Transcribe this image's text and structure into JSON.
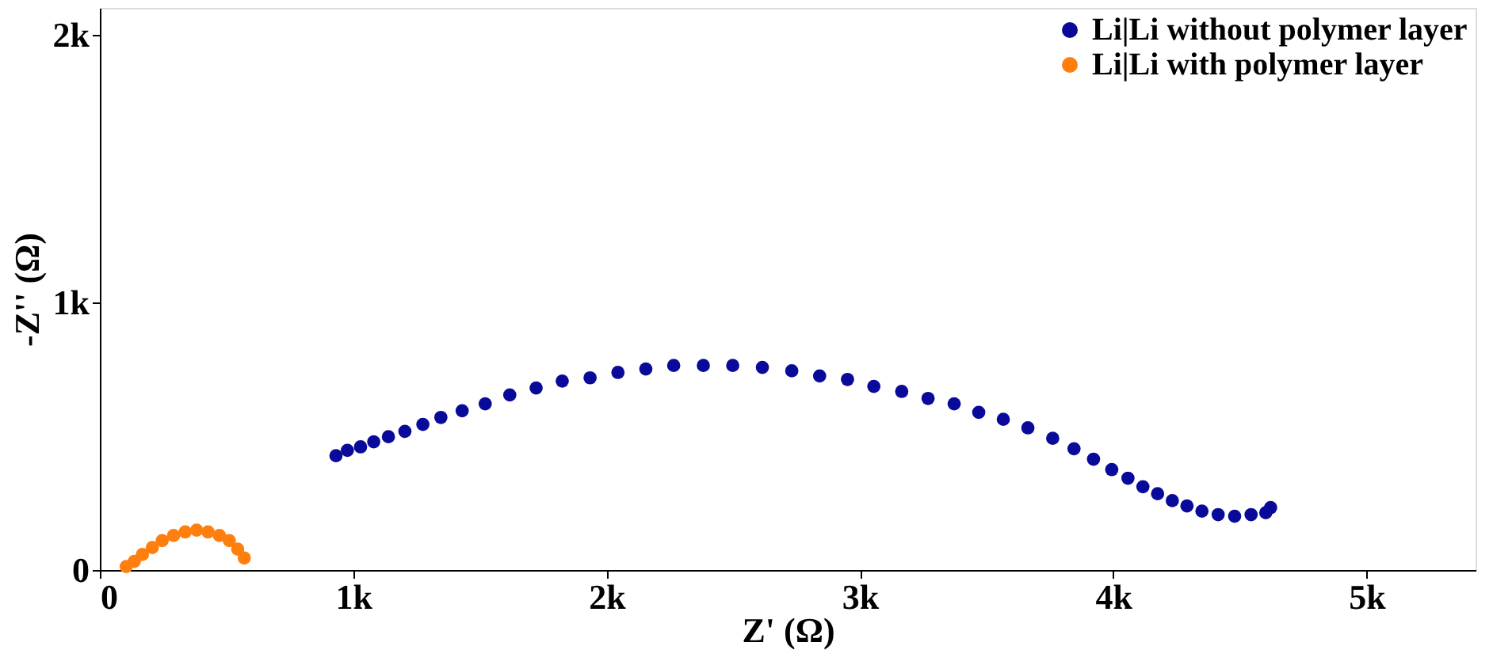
{
  "chart_data": {
    "type": "scatter",
    "xlabel": "Z' (Ω)",
    "ylabel": "-Z'' (Ω)",
    "xlim": [
      0,
      5430
    ],
    "ylim": [
      0,
      2100
    ],
    "xticks": [
      0,
      {
        "value": 1000,
        "label": "1k"
      },
      {
        "value": 2000,
        "label": "2k"
      },
      {
        "value": 3000,
        "label": "3k"
      },
      {
        "value": 4000,
        "label": "4k"
      },
      {
        "value": 5000,
        "label": "5k"
      }
    ],
    "yticks": [
      0,
      {
        "value": 1000,
        "label": "1k"
      },
      {
        "value": 2000,
        "label": "2k"
      }
    ],
    "grid": false,
    "legend": "top right",
    "marker": "circle",
    "series": [
      {
        "name": "Li|Li without polymer layer",
        "color": "#0a0a9a",
        "x": [
          932,
          977,
          1029,
          1081,
          1139,
          1204,
          1275,
          1346,
          1430,
          1521,
          1618,
          1722,
          1825,
          1935,
          2045,
          2155,
          2265,
          2382,
          2498,
          2615,
          2731,
          2841,
          2951,
          3055,
          3165,
          3269,
          3372,
          3469,
          3566,
          3663,
          3761,
          3845,
          3922,
          3994,
          4058,
          4117,
          4175,
          4233,
          4291,
          4350,
          4414,
          4479,
          4544,
          4602,
          4621
        ],
        "values": [
          427,
          447,
          460,
          479,
          498,
          518,
          544,
          570,
          595,
          621,
          654,
          680,
          706,
          718,
          738,
          751,
          764,
          764,
          764,
          757,
          744,
          725,
          712,
          686,
          667,
          641,
          621,
          589,
          563,
          531,
          492,
          453,
          414,
          375,
          343,
          311,
          285,
          259,
          239,
          220,
          207,
          201,
          207,
          214,
          233
        ]
      },
      {
        "name": "Li|Li with polymer layer",
        "color": "#ff7f0e",
        "x": [
          104,
          136,
          168,
          207,
          246,
          291,
          337,
          382,
          427,
          472,
          511,
          544,
          570
        ],
        "values": [
          13,
          32,
          58,
          84,
          110,
          129,
          142,
          149,
          142,
          129,
          110,
          78,
          45
        ]
      }
    ]
  }
}
